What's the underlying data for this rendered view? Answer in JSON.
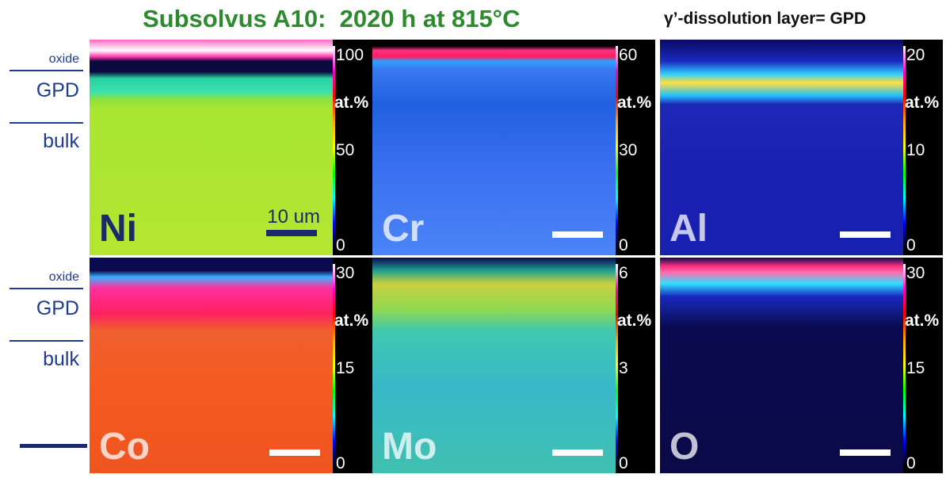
{
  "title": {
    "sample": "Subsolvus A10:",
    "condition": "2020 h at 815°C"
  },
  "note": "γ’-dissolution layer= GPD",
  "layer_labels": [
    "oxide",
    "GPD",
    "bulk"
  ],
  "scale_bar": "10 um",
  "unit": "at.%",
  "panels": [
    {
      "element": "Ni",
      "ticks": [
        100,
        50,
        0
      ]
    },
    {
      "element": "Cr",
      "ticks": [
        60,
        30,
        0
      ]
    },
    {
      "element": "Al",
      "ticks": [
        20,
        10,
        0
      ]
    },
    {
      "element": "Co",
      "ticks": [
        30,
        15,
        0
      ]
    },
    {
      "element": "Mo",
      "ticks": [
        6,
        3,
        0
      ]
    },
    {
      "element": "O",
      "ticks": [
        30,
        15,
        0
      ]
    }
  ]
}
